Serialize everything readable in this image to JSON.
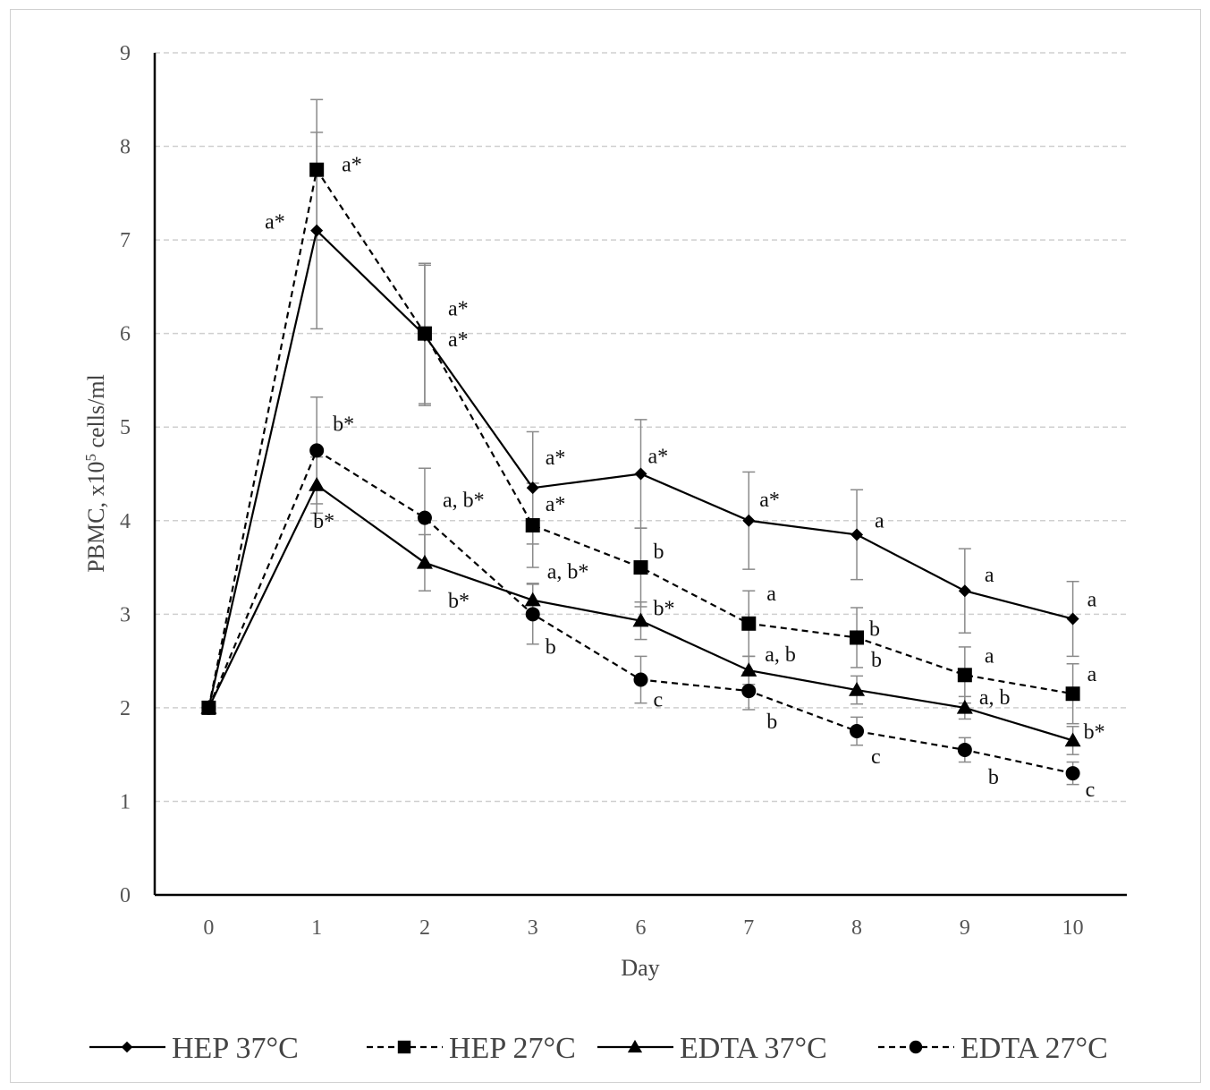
{
  "chart_data": {
    "type": "line",
    "title": "",
    "xlabel": "Day",
    "ylabel": "PBMC, x10<sup>5</sup> cells/ml",
    "ylabel_parts": {
      "before": "PBMC, x10",
      "sup": "5",
      "after": " cells/ml"
    },
    "categories": [
      "0",
      "1",
      "2",
      "3",
      "6",
      "7",
      "8",
      "9",
      "10"
    ],
    "ylim": [
      0,
      9
    ],
    "yticks": [
      "0",
      "1",
      "2",
      "3",
      "4",
      "5",
      "6",
      "7",
      "8",
      "9"
    ],
    "grid": "horizontal dashed",
    "legend_position": "bottom",
    "series": [
      {
        "name": "HEP 37°C",
        "line": "solid",
        "marker": "diamond",
        "values": [
          2.0,
          7.1,
          5.98,
          4.35,
          4.5,
          4.0,
          3.85,
          3.25,
          2.95
        ],
        "error": [
          0,
          1.05,
          0.75,
          0.6,
          0.58,
          0.52,
          0.48,
          0.45,
          0.4
        ],
        "labels": [
          "",
          "a*",
          "a*",
          "a*",
          "a*",
          "a*",
          "a",
          "a",
          "a"
        ]
      },
      {
        "name": "HEP 27°C",
        "line": "dashed",
        "marker": "square",
        "values": [
          2.0,
          7.75,
          6.0,
          3.95,
          3.5,
          2.9,
          2.75,
          2.35,
          2.15
        ],
        "error": [
          0,
          0.75,
          0.75,
          0.45,
          0.42,
          0.35,
          0.32,
          0.3,
          0.32
        ],
        "labels": [
          "",
          "a*",
          "a*",
          "a*",
          "b",
          "a",
          "b",
          "a",
          "a"
        ]
      },
      {
        "name": "EDTA 37°C",
        "line": "solid",
        "marker": "triangle",
        "values": [
          2.0,
          4.38,
          3.55,
          3.15,
          2.93,
          2.4,
          2.19,
          2.0,
          1.65
        ],
        "error": [
          0,
          0.3,
          0.3,
          0.18,
          0.2,
          0.15,
          0.15,
          0.12,
          0.15
        ],
        "labels": [
          "",
          "b*",
          "b*",
          "a, b*",
          "b*",
          "a, b",
          "b",
          "a, b",
          "b*"
        ]
      },
      {
        "name": "EDTA 27°C",
        "line": "dashed",
        "marker": "circle",
        "values": [
          2.0,
          4.75,
          4.03,
          3.0,
          2.3,
          2.18,
          1.75,
          1.55,
          1.3
        ],
        "error": [
          0,
          0.57,
          0.53,
          0.32,
          0.25,
          0.2,
          0.15,
          0.13,
          0.12
        ],
        "labels": [
          "",
          "b*",
          "a, b*",
          "b",
          "c",
          "b",
          "c",
          "b",
          "c"
        ]
      }
    ]
  }
}
